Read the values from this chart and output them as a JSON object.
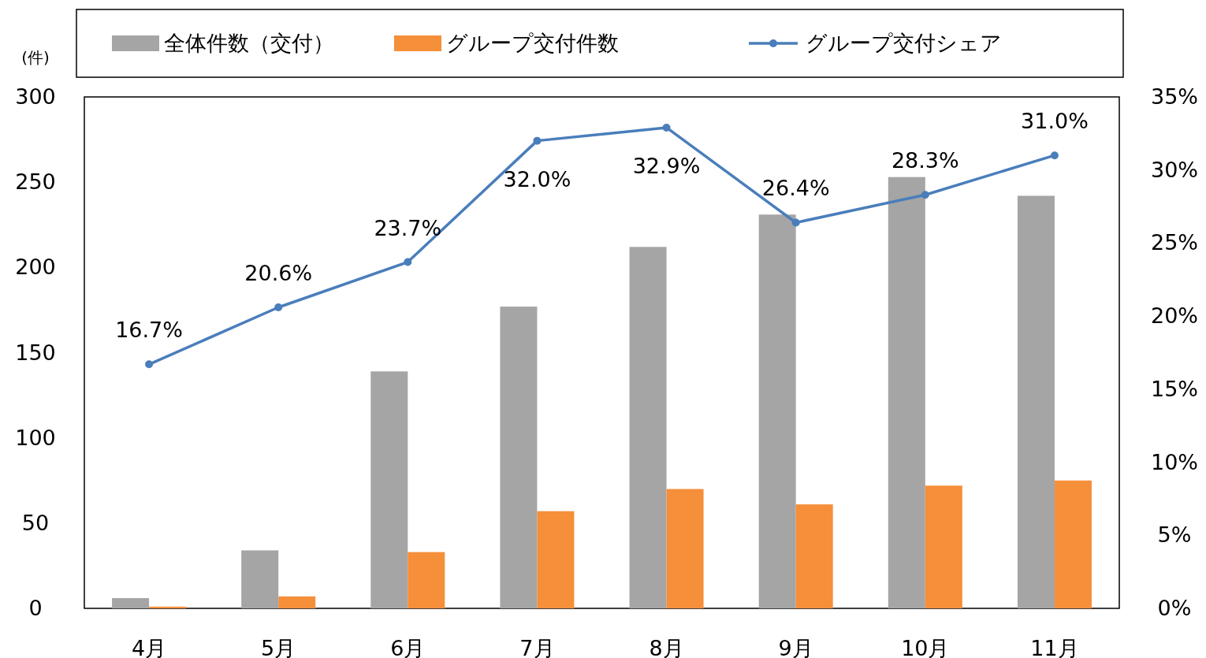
{
  "chart_data": {
    "type": "bar",
    "ylabel": "(件)",
    "categories": [
      "4月",
      "5月",
      "6月",
      "7月",
      "8月",
      "9月",
      "10月",
      "11月"
    ],
    "series": [
      {
        "name": "全体件数（交付）",
        "color": "#a5a5a5",
        "values": [
          6,
          34,
          139,
          177,
          212,
          231,
          253,
          242
        ]
      },
      {
        "name": "グループ交付件数",
        "color": "#f58f3a",
        "values": [
          1,
          7,
          33,
          57,
          70,
          61,
          72,
          75
        ]
      },
      {
        "name": "グループ交付シェア",
        "type": "line",
        "axis": "y2",
        "color": "#4a7ebb",
        "marker": "circle",
        "values": [
          16.7,
          20.6,
          23.7,
          32.0,
          32.9,
          26.4,
          28.3,
          31.0
        ],
        "value_labels": [
          "16.7%",
          "20.6%",
          "23.7%",
          "32.0%",
          "32.9%",
          "26.4%",
          "28.3%",
          "31.0%"
        ]
      }
    ],
    "ylim": [
      0,
      300
    ],
    "yticks": [
      0,
      50,
      100,
      150,
      200,
      250,
      300
    ],
    "y2lim": [
      0,
      35
    ],
    "y2ticks": [
      {
        "value": 0,
        "label": "0%"
      },
      {
        "value": 5,
        "label": "5%"
      },
      {
        "value": 10,
        "label": "10%"
      },
      {
        "value": 15,
        "label": "15%"
      },
      {
        "value": 20,
        "label": "20%"
      },
      {
        "value": 25,
        "label": "25%"
      },
      {
        "value": 30,
        "label": "30%"
      },
      {
        "value": 35,
        "label": "35%"
      }
    ],
    "legend": "top"
  }
}
